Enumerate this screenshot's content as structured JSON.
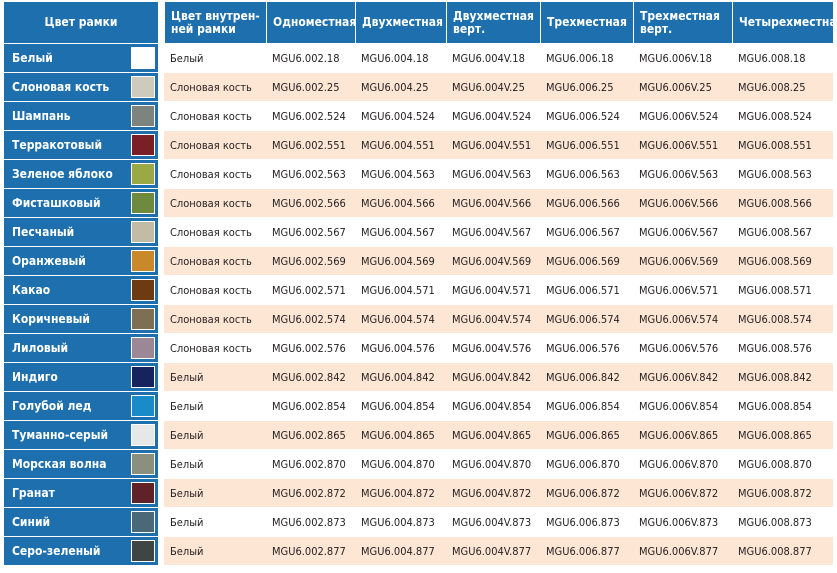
{
  "headers": [
    "Цвет рамки",
    "Цвет внутрен-\nней рамки",
    "Одноместная",
    "Двухместная",
    "Двухместная\nверт.",
    "Трехместная",
    "Трехместная\nверт.",
    "Четырехместная"
  ],
  "rows": [
    {
      "name": "Белый",
      "color": "#ffffff",
      "inner": "Белый",
      "codes": [
        "MGU6.002.18",
        "MGU6.004.18",
        "MGU6.004V.18",
        "MGU6.006.18",
        "MGU6.006V.18",
        "MGU6.008.18"
      ]
    },
    {
      "name": "Слоновая кость",
      "color": "#cfcbbc",
      "inner": "Слоновая кость",
      "codes": [
        "MGU6.002.25",
        "MGU6.004.25",
        "MGU6.004V.25",
        "MGU6.006.25",
        "MGU6.006V.25",
        "MGU6.008.25"
      ]
    },
    {
      "name": "Шампань",
      "color": "#7c847d",
      "inner": "Слоновая кость",
      "codes": [
        "MGU6.002.524",
        "MGU6.004.524",
        "MGU6.004V.524",
        "MGU6.006.524",
        "MGU6.006V.524",
        "MGU6.008.524"
      ]
    },
    {
      "name": "Терракотовый",
      "color": "#7a1f26",
      "inner": "Слоновая кость",
      "codes": [
        "MGU6.002.551",
        "MGU6.004.551",
        "MGU6.004V.551",
        "MGU6.006.551",
        "MGU6.006V.551",
        "MGU6.008.551"
      ]
    },
    {
      "name": "Зеленое яблоко",
      "color": "#9aa846",
      "inner": "Слоновая кость",
      "codes": [
        "MGU6.002.563",
        "MGU6.004.563",
        "MGU6.004V.563",
        "MGU6.006.563",
        "MGU6.006V.563",
        "MGU6.008.563"
      ]
    },
    {
      "name": "Фисташковый",
      "color": "#6e8a3c",
      "inner": "Слоновая кость",
      "codes": [
        "MGU6.002.566",
        "MGU6.004.566",
        "MGU6.004V.566",
        "MGU6.006.566",
        "MGU6.006V.566",
        "MGU6.008.566"
      ]
    },
    {
      "name": "Песчаный",
      "color": "#c4bba4",
      "inner": "Слоновая кость",
      "codes": [
        "MGU6.002.567",
        "MGU6.004.567",
        "MGU6.004V.567",
        "MGU6.006.567",
        "MGU6.006V.567",
        "MGU6.008.567"
      ]
    },
    {
      "name": "Оранжевый",
      "color": "#c9892b",
      "inner": "Слоновая кость",
      "codes": [
        "MGU6.002.569",
        "MGU6.004.569",
        "MGU6.004V.569",
        "MGU6.006.569",
        "MGU6.006V.569",
        "MGU6.008.569"
      ]
    },
    {
      "name": "Какао",
      "color": "#6e3a12",
      "inner": "Слоновая кость",
      "codes": [
        "MGU6.002.571",
        "MGU6.004.571",
        "MGU6.004V.571",
        "MGU6.006.571",
        "MGU6.006V.571",
        "MGU6.008.571"
      ]
    },
    {
      "name": "Коричневый",
      "color": "#7e6e54",
      "inner": "Слоновая кость",
      "codes": [
        "MGU6.002.574",
        "MGU6.004.574",
        "MGU6.004V.574",
        "MGU6.006.574",
        "MGU6.006V.574",
        "MGU6.008.574"
      ]
    },
    {
      "name": "Лиловый",
      "color": "#9c8894",
      "inner": "Слоновая кость",
      "codes": [
        "MGU6.002.576",
        "MGU6.004.576",
        "MGU6.004V.576",
        "MGU6.006.576",
        "MGU6.006V.576",
        "MGU6.008.576"
      ]
    },
    {
      "name": "Индиго",
      "color": "#17235e",
      "inner": "Белый",
      "codes": [
        "MGU6.002.842",
        "MGU6.004.842",
        "MGU6.004V.842",
        "MGU6.006.842",
        "MGU6.006V.842",
        "MGU6.008.842"
      ]
    },
    {
      "name": "Голубой лед",
      "color": "#1a8bc9",
      "inner": "Белый",
      "codes": [
        "MGU6.002.854",
        "MGU6.004.854",
        "MGU6.004V.854",
        "MGU6.006.854",
        "MGU6.006V.854",
        "MGU6.008.854"
      ]
    },
    {
      "name": "Туманно-серый",
      "color": "#e6e7e8",
      "inner": "Белый",
      "codes": [
        "MGU6.002.865",
        "MGU6.004.865",
        "MGU6.004V.865",
        "MGU6.006.865",
        "MGU6.006V.865",
        "MGU6.008.865"
      ]
    },
    {
      "name": "Морская волна",
      "color": "#8a8f7e",
      "inner": "Белый",
      "codes": [
        "MGU6.002.870",
        "MGU6.004.870",
        "MGU6.004V.870",
        "MGU6.006.870",
        "MGU6.006V.870",
        "MGU6.008.870"
      ]
    },
    {
      "name": "Гранат",
      "color": "#5e2227",
      "inner": "Белый",
      "codes": [
        "MGU6.002.872",
        "MGU6.004.872",
        "MGU6.004V.872",
        "MGU6.006.872",
        "MGU6.006V.872",
        "MGU6.008.872"
      ]
    },
    {
      "name": "Синий",
      "color": "#4a6878",
      "inner": "Белый",
      "codes": [
        "MGU6.002.873",
        "MGU6.004.873",
        "MGU6.004V.873",
        "MGU6.006.873",
        "MGU6.006V.873",
        "MGU6.008.873"
      ]
    },
    {
      "name": "Серо-зеленый",
      "color": "#3e4543",
      "inner": "Белый",
      "codes": [
        "MGU6.002.877",
        "MGU6.004.877",
        "MGU6.004V.877",
        "MGU6.006.877",
        "MGU6.006V.877",
        "MGU6.008.877"
      ]
    }
  ]
}
